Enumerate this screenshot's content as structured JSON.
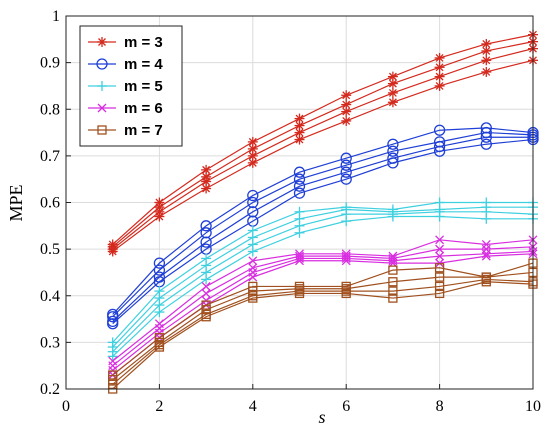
{
  "chart_data": {
    "type": "line",
    "xlabel": "s",
    "ylabel": "MPE",
    "xlim": [
      0,
      10
    ],
    "ylim": [
      0.2,
      1.0
    ],
    "xticks": [
      0,
      2,
      4,
      6,
      8,
      10
    ],
    "yticks": [
      0.2,
      0.3,
      0.4,
      0.5,
      0.6,
      0.7,
      0.8,
      0.9,
      1
    ],
    "grid": true,
    "legend_position": "top-left",
    "x": [
      1,
      2,
      3,
      4,
      5,
      6,
      7,
      8,
      9,
      10
    ],
    "series": [
      {
        "name": "m = 3",
        "legend_label": "m = 3",
        "color": "#d42a1e",
        "marker": "asterisk",
        "lines": [
          [
            0.51,
            0.6,
            0.67,
            0.73,
            0.78,
            0.83,
            0.87,
            0.91,
            0.94,
            0.96
          ],
          [
            0.505,
            0.59,
            0.655,
            0.715,
            0.765,
            0.81,
            0.855,
            0.89,
            0.925,
            0.945
          ],
          [
            0.5,
            0.58,
            0.645,
            0.7,
            0.75,
            0.795,
            0.835,
            0.87,
            0.905,
            0.93
          ],
          [
            0.495,
            0.57,
            0.63,
            0.685,
            0.735,
            0.775,
            0.815,
            0.85,
            0.88,
            0.905
          ]
        ]
      },
      {
        "name": "m = 4",
        "legend_label": "m = 4",
        "color": "#1f3fd6",
        "marker": "circle",
        "lines": [
          [
            0.36,
            0.47,
            0.55,
            0.615,
            0.665,
            0.695,
            0.725,
            0.755,
            0.76,
            0.75
          ],
          [
            0.355,
            0.455,
            0.535,
            0.6,
            0.65,
            0.68,
            0.71,
            0.73,
            0.75,
            0.745
          ],
          [
            0.345,
            0.44,
            0.515,
            0.58,
            0.635,
            0.665,
            0.695,
            0.72,
            0.74,
            0.74
          ],
          [
            0.34,
            0.43,
            0.5,
            0.56,
            0.62,
            0.65,
            0.685,
            0.71,
            0.725,
            0.735
          ]
        ]
      },
      {
        "name": "m = 5",
        "legend_label": "m = 5",
        "color": "#3fd0e0",
        "marker": "plus",
        "lines": [
          [
            0.3,
            0.41,
            0.48,
            0.54,
            0.58,
            0.59,
            0.585,
            0.6,
            0.6,
            0.6
          ],
          [
            0.29,
            0.395,
            0.465,
            0.525,
            0.565,
            0.585,
            0.58,
            0.585,
            0.59,
            0.59
          ],
          [
            0.28,
            0.38,
            0.45,
            0.51,
            0.55,
            0.575,
            0.575,
            0.58,
            0.58,
            0.575
          ],
          [
            0.27,
            0.365,
            0.435,
            0.495,
            0.535,
            0.56,
            0.57,
            0.57,
            0.565,
            0.565
          ]
        ]
      },
      {
        "name": "m = 6",
        "legend_label": "m = 6",
        "color": "#d82ee0",
        "marker": "x",
        "lines": [
          [
            0.26,
            0.34,
            0.42,
            0.475,
            0.49,
            0.49,
            0.485,
            0.52,
            0.51,
            0.52
          ],
          [
            0.25,
            0.33,
            0.405,
            0.46,
            0.485,
            0.485,
            0.48,
            0.5,
            0.5,
            0.505
          ],
          [
            0.24,
            0.32,
            0.39,
            0.45,
            0.48,
            0.48,
            0.475,
            0.485,
            0.49,
            0.495
          ],
          [
            0.23,
            0.31,
            0.38,
            0.44,
            0.475,
            0.475,
            0.47,
            0.47,
            0.485,
            0.49
          ]
        ]
      },
      {
        "name": "m = 7",
        "legend_label": "m = 7",
        "color": "#a0501e",
        "marker": "square",
        "lines": [
          [
            0.23,
            0.31,
            0.38,
            0.42,
            0.42,
            0.42,
            0.455,
            0.46,
            0.44,
            0.47
          ],
          [
            0.22,
            0.3,
            0.37,
            0.41,
            0.415,
            0.415,
            0.43,
            0.44,
            0.44,
            0.45
          ],
          [
            0.21,
            0.295,
            0.36,
            0.4,
            0.41,
            0.41,
            0.41,
            0.42,
            0.435,
            0.43
          ],
          [
            0.2,
            0.29,
            0.355,
            0.395,
            0.405,
            0.405,
            0.395,
            0.405,
            0.43,
            0.425
          ]
        ]
      }
    ]
  }
}
